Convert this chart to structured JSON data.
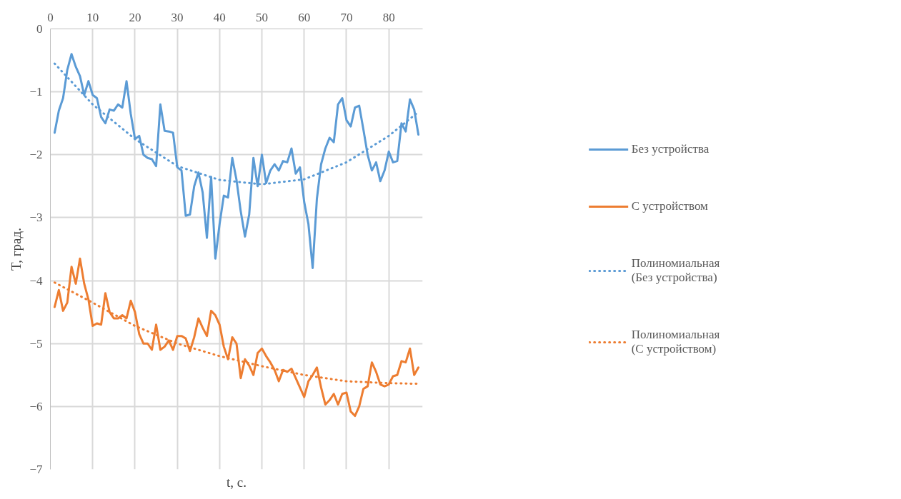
{
  "chart_data": {
    "type": "line",
    "xlabel": "t, с.",
    "ylabel": "T, град.",
    "xlim": [
      0,
      88
    ],
    "xticks": [
      0,
      10,
      20,
      30,
      40,
      50,
      60,
      70,
      80
    ],
    "ylim": [
      -7,
      0
    ],
    "yticks": [
      0,
      -1,
      -2,
      -3,
      -4,
      -5,
      -6,
      -7
    ],
    "x": [
      1,
      2,
      3,
      4,
      5,
      6,
      7,
      8,
      9,
      10,
      11,
      12,
      13,
      14,
      15,
      16,
      17,
      18,
      19,
      20,
      21,
      22,
      23,
      24,
      25,
      26,
      27,
      28,
      29,
      30,
      31,
      32,
      33,
      34,
      35,
      36,
      37,
      38,
      39,
      40,
      41,
      42,
      43,
      44,
      45,
      46,
      47,
      48,
      49,
      50,
      51,
      52,
      53,
      54,
      55,
      56,
      57,
      58,
      59,
      60,
      61,
      62,
      63,
      64,
      65,
      66,
      67,
      68,
      69,
      70,
      71,
      72,
      73,
      74,
      75,
      76,
      77,
      78,
      79,
      80,
      81,
      82,
      83,
      84,
      85,
      86,
      87
    ],
    "grid": true,
    "legend": "right",
    "marker": "none",
    "series": [
      {
        "name": "Без устройства",
        "color": "#5b9bd5",
        "line_style": "solid",
        "values": [
          -1.65,
          -1.3,
          -1.1,
          -0.65,
          -0.4,
          -0.6,
          -0.75,
          -1.05,
          -0.83,
          -1.05,
          -1.1,
          -1.4,
          -1.5,
          -1.28,
          -1.3,
          -1.2,
          -1.25,
          -0.83,
          -1.35,
          -1.75,
          -1.7,
          -2.0,
          -2.05,
          -2.07,
          -2.18,
          -1.2,
          -1.62,
          -1.63,
          -1.65,
          -2.2,
          -2.25,
          -2.97,
          -2.95,
          -2.5,
          -2.28,
          -2.6,
          -3.32,
          -2.35,
          -3.65,
          -3.1,
          -2.65,
          -2.68,
          -2.05,
          -2.4,
          -2.9,
          -3.3,
          -2.95,
          -2.05,
          -2.5,
          -2.0,
          -2.45,
          -2.25,
          -2.15,
          -2.25,
          -2.1,
          -2.12,
          -1.9,
          -2.3,
          -2.2,
          -2.75,
          -3.1,
          -3.8,
          -2.7,
          -2.15,
          -1.9,
          -1.73,
          -1.8,
          -1.2,
          -1.1,
          -1.45,
          -1.55,
          -1.25,
          -1.22,
          -1.6,
          -2.0,
          -2.25,
          -2.12,
          -2.42,
          -2.25,
          -1.95,
          -2.12,
          -2.1,
          -1.5,
          -1.63,
          -1.12,
          -1.28,
          -1.68
        ]
      },
      {
        "name": "С устройством",
        "color": "#ed7d31",
        "line_style": "solid",
        "values": [
          -4.42,
          -4.15,
          -4.48,
          -4.35,
          -3.78,
          -4.05,
          -3.65,
          -4.05,
          -4.3,
          -4.72,
          -4.68,
          -4.7,
          -4.2,
          -4.5,
          -4.6,
          -4.6,
          -4.55,
          -4.6,
          -4.32,
          -4.5,
          -4.85,
          -5.0,
          -5.0,
          -5.1,
          -4.7,
          -5.1,
          -5.05,
          -4.95,
          -5.1,
          -4.88,
          -4.88,
          -4.92,
          -5.12,
          -4.9,
          -4.6,
          -4.75,
          -4.88,
          -4.48,
          -4.55,
          -4.7,
          -5.05,
          -5.25,
          -4.9,
          -5.0,
          -5.55,
          -5.25,
          -5.35,
          -5.5,
          -5.15,
          -5.08,
          -5.2,
          -5.3,
          -5.42,
          -5.6,
          -5.42,
          -5.45,
          -5.4,
          -5.55,
          -5.7,
          -5.85,
          -5.6,
          -5.5,
          -5.38,
          -5.7,
          -5.97,
          -5.9,
          -5.8,
          -5.97,
          -5.8,
          -5.78,
          -6.08,
          -6.15,
          -6.0,
          -5.72,
          -5.68,
          -5.3,
          -5.45,
          -5.65,
          -5.68,
          -5.65,
          -5.52,
          -5.5,
          -5.28,
          -5.3,
          -5.08,
          -5.5,
          -5.38
        ]
      },
      {
        "name": "Полиномиальная (Без устройства)",
        "color": "#5b9bd5",
        "line_style": "dotted",
        "x": [
          1,
          10,
          20,
          30,
          40,
          50,
          60,
          70,
          80,
          87
        ],
        "values": [
          -0.55,
          -1.2,
          -1.75,
          -2.18,
          -2.4,
          -2.47,
          -2.39,
          -2.12,
          -1.7,
          -1.32
        ]
      },
      {
        "name": "Полиномиальная (С устройством)",
        "color": "#ed7d31",
        "line_style": "dotted",
        "x": [
          1,
          10,
          20,
          30,
          40,
          50,
          60,
          70,
          80,
          87
        ],
        "values": [
          -4.03,
          -4.35,
          -4.72,
          -5.0,
          -5.2,
          -5.36,
          -5.5,
          -5.6,
          -5.63,
          -5.64
        ]
      }
    ]
  }
}
